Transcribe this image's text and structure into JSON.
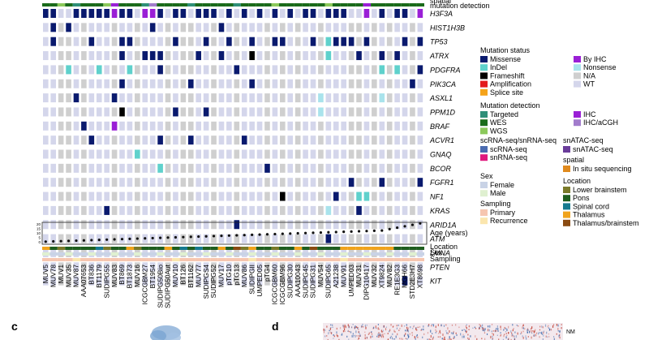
{
  "header": {
    "top_labels": [
      "spatial",
      "mutation detection"
    ]
  },
  "genes": [
    "H3F3A",
    "HIST1H3B",
    "TP53",
    "ATRX",
    "PDGFRA",
    "PIK3CA",
    "ASXL1",
    "PPM1D",
    "BRAF",
    "ACVR1",
    "GNAQ",
    "BCOR",
    "FGFR1",
    "NF1",
    "KRAS",
    "ARID1A",
    "ATM",
    "LMNA",
    "PTEN",
    "KIT"
  ],
  "samples": [
    "MUV5",
    "MUV78",
    "MUV1",
    "MUV35",
    "MUV87",
    "AAA07653",
    "BT836",
    "BT1179",
    "SUDIPG55",
    "MUV83",
    "BT869",
    "BT1873",
    "MUV16",
    "ICGCGBM27",
    "BT1954",
    "SUDIPG50Bio",
    "SUDIPG50Aut",
    "MUV10",
    "BT126",
    "BT1162",
    "MUV77",
    "SUDIPGS4",
    "SUDIPG52",
    "MUV17",
    "pTG10",
    "pTG13",
    "MUV86",
    "SUDIPGII",
    "UMPED05",
    "pTG4",
    "ICGCGBM60",
    "ICGCGBM96",
    "SUDIPG30",
    "AAA10043",
    "SUDIPG45",
    "SUDIPG31",
    "MUV54",
    "SUDIPG65",
    "A21238",
    "MUV91",
    "UMPED03",
    "MUV31",
    "DIPG10417",
    "MUV32",
    "XT9824",
    "MUV82",
    "RE1E3G3",
    "MGH66",
    "STD2E3H7",
    "XT8698"
  ],
  "annotation_rows": [
    "Age (years)",
    "Location",
    "Sex",
    "Sampling"
  ],
  "age_ticks": [
    "20",
    "15",
    "10",
    "5",
    "0"
  ],
  "legends": {
    "mutation_status": {
      "title": "Mutation status",
      "left": [
        {
          "label": "Missense",
          "color": "#0a1a6e"
        },
        {
          "label": "InDel",
          "color": "#5fd1cc"
        },
        {
          "label": "Frameshift",
          "color": "#000000"
        },
        {
          "label": "Amplification",
          "color": "#e31a1c"
        },
        {
          "label": "Splice site",
          "color": "#f5a31a"
        }
      ],
      "right": [
        {
          "label": "By IHC",
          "color": "#9a1fd6"
        },
        {
          "label": "Nonsense",
          "color": "#a9e3ec"
        },
        {
          "label": "N/A",
          "color": "#cfcfcf"
        },
        {
          "label": "WT",
          "color": "#d4d6eb"
        }
      ]
    },
    "mutation_detection": {
      "title": "Mutation detection",
      "left": [
        {
          "label": "Targeted",
          "color": "#2f8f78"
        },
        {
          "label": "WES",
          "color": "#1a6b1a"
        },
        {
          "label": "WGS",
          "color": "#8cc95b"
        }
      ],
      "right": [
        {
          "label": "IHC",
          "color": "#9a1fd6"
        },
        {
          "label": "IHC/aCGH",
          "color": "#a27ccc"
        }
      ]
    },
    "scrna": {
      "title": "scRNA-seq/snRNA-seq",
      "items": [
        {
          "label": "scRNA-seq",
          "color": "#4b6bb0"
        },
        {
          "label": "snRNA-seq",
          "color": "#e0197d"
        }
      ]
    },
    "snatac": {
      "title": "snATAC-seq",
      "items": [
        {
          "label": "snATAC-seq",
          "color": "#6a3d9a"
        }
      ]
    },
    "spatial": {
      "title": "spatial",
      "items": [
        {
          "label": "In situ sequencing",
          "color": "#e08a1e"
        }
      ]
    },
    "sex": {
      "title": "Sex",
      "items": [
        {
          "label": "Female",
          "color": "#c9d3e6"
        },
        {
          "label": "Male",
          "color": "#dff0d0"
        }
      ]
    },
    "sampling": {
      "title": "Sampling",
      "items": [
        {
          "label": "Primary",
          "color": "#f6c6b0"
        },
        {
          "label": "Recurrence",
          "color": "#fbe6ae"
        }
      ]
    },
    "location": {
      "title": "Location",
      "items": [
        {
          "label": "Lower brainstem",
          "color": "#7a7a2a"
        },
        {
          "label": "Pons",
          "color": "#1f5e1f"
        },
        {
          "label": "Spinal cord",
          "color": "#167a8f"
        },
        {
          "label": "Thalamus",
          "color": "#f0a31c"
        },
        {
          "label": "Thalamus/brainstem",
          "color": "#8a4b12"
        }
      ]
    }
  },
  "panels": {
    "c": "c",
    "d": "d",
    "nm_label": "NM"
  }
}
